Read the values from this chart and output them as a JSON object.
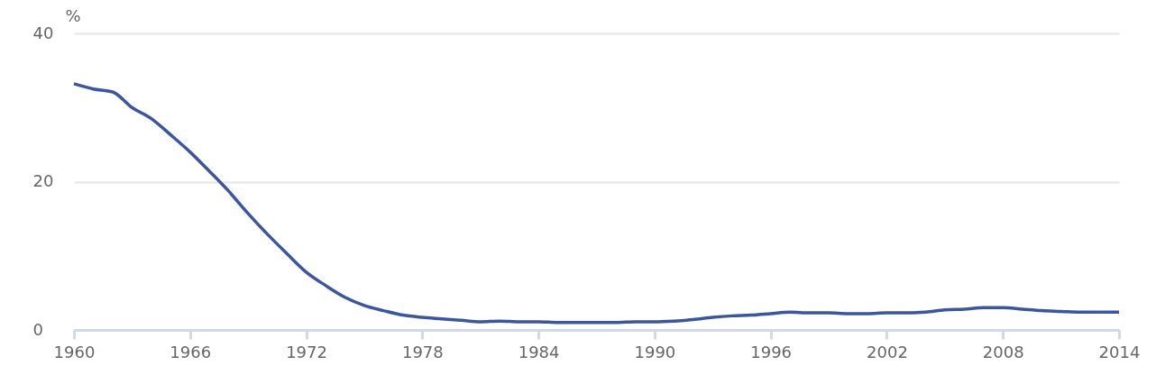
{
  "chart_data": {
    "type": "line",
    "ylabel": "%",
    "x": [
      1960,
      1961,
      1962,
      1963,
      1964,
      1965,
      1966,
      1967,
      1968,
      1969,
      1970,
      1971,
      1972,
      1973,
      1974,
      1975,
      1976,
      1977,
      1978,
      1979,
      1980,
      1981,
      1982,
      1983,
      1984,
      1985,
      1986,
      1987,
      1988,
      1989,
      1990,
      1991,
      1992,
      1993,
      1994,
      1995,
      1996,
      1997,
      1998,
      1999,
      2000,
      2001,
      2002,
      2003,
      2004,
      2005,
      2006,
      2007,
      2008,
      2009,
      2010,
      2011,
      2012,
      2013,
      2014
    ],
    "series": [
      {
        "color": "#3a56a0",
        "values": [
          33.2,
          32.5,
          32.1,
          30.0,
          28.5,
          26.3,
          24.0,
          21.4,
          18.7,
          15.7,
          12.9,
          10.3,
          7.8,
          6.0,
          4.4,
          3.3,
          2.6,
          2.0,
          1.7,
          1.5,
          1.3,
          1.1,
          1.2,
          1.1,
          1.1,
          1.0,
          1.0,
          1.0,
          1.0,
          1.1,
          1.1,
          1.2,
          1.4,
          1.7,
          1.9,
          2.0,
          2.2,
          2.4,
          2.3,
          2.3,
          2.2,
          2.2,
          2.3,
          2.3,
          2.4,
          2.7,
          2.8,
          3.0,
          3.0,
          2.8,
          2.6,
          2.5,
          2.4,
          2.4,
          2.4
        ]
      }
    ],
    "xlim": [
      1960,
      2014
    ],
    "xticks": [
      1960,
      1966,
      1972,
      1978,
      1984,
      1990,
      1996,
      2002,
      2008,
      2014
    ],
    "ylim": [
      0,
      40
    ],
    "yticks": [
      0,
      20,
      40
    ],
    "grid": "y",
    "legend": false,
    "marker": "none",
    "line_style": "solid"
  }
}
